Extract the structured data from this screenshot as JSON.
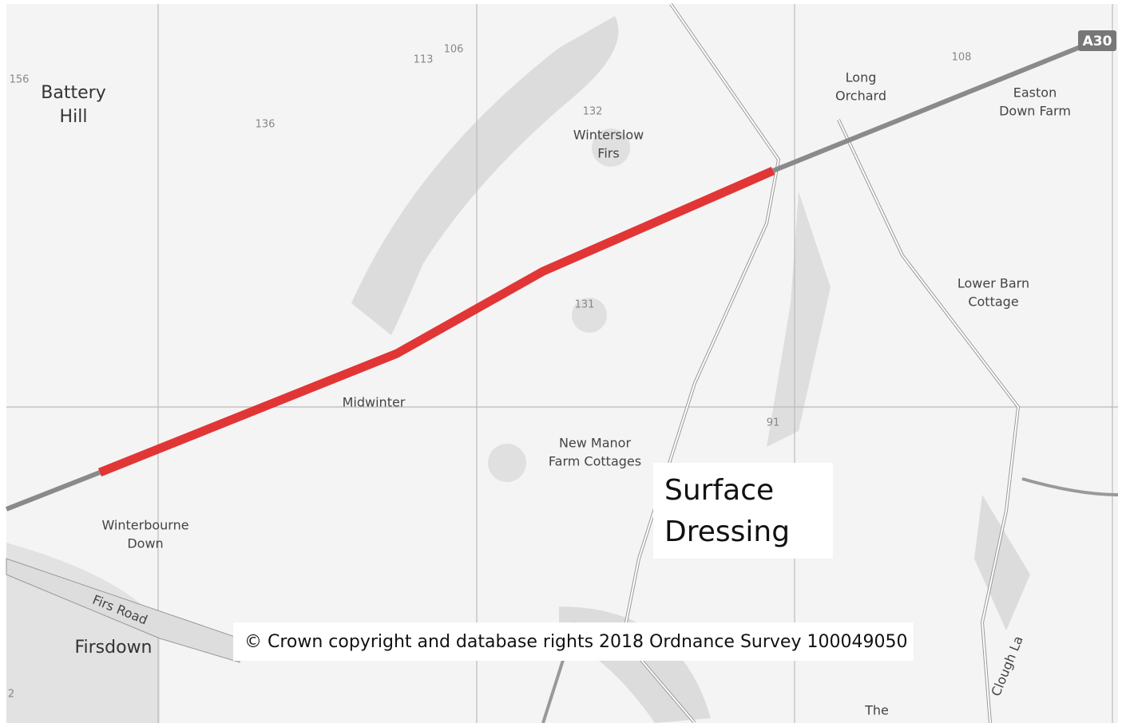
{
  "map": {
    "labels": [
      {
        "lines": [
          "156"
        ]
      },
      {
        "lines": [
          "Battery",
          "Hill"
        ]
      },
      {
        "lines": [
          "136"
        ]
      },
      {
        "lines": [
          "113"
        ]
      },
      {
        "lines": [
          "106"
        ]
      },
      {
        "lines": [
          "132"
        ]
      },
      {
        "lines": [
          "Winterslow",
          "Firs"
        ]
      },
      {
        "lines": [
          "131"
        ]
      },
      {
        "lines": [
          "Long",
          "Orchard"
        ]
      },
      {
        "lines": [
          "108"
        ]
      },
      {
        "lines": [
          "Easton",
          "Down Farm"
        ]
      },
      {
        "lines": [
          "Lower Barn",
          "Cottage"
        ]
      },
      {
        "lines": [
          "Midwinter"
        ]
      },
      {
        "lines": [
          "91"
        ]
      },
      {
        "lines": [
          "New Manor",
          "Farm Cottages"
        ]
      },
      {
        "lines": [
          "Winterbourne",
          "Down"
        ]
      },
      {
        "lines": [
          "Firs Road"
        ]
      },
      {
        "lines": [
          "Firsdown"
        ]
      },
      {
        "lines": [
          "The"
        ]
      },
      {
        "lines": [
          "Clough La"
        ]
      },
      {
        "lines": [
          "2"
        ]
      }
    ],
    "road_shield": "A30",
    "callout": [
      "Surface",
      "Dressing"
    ],
    "copyright": "© Crown copyright and database rights 2018 Ordnance Survey 100049050"
  }
}
